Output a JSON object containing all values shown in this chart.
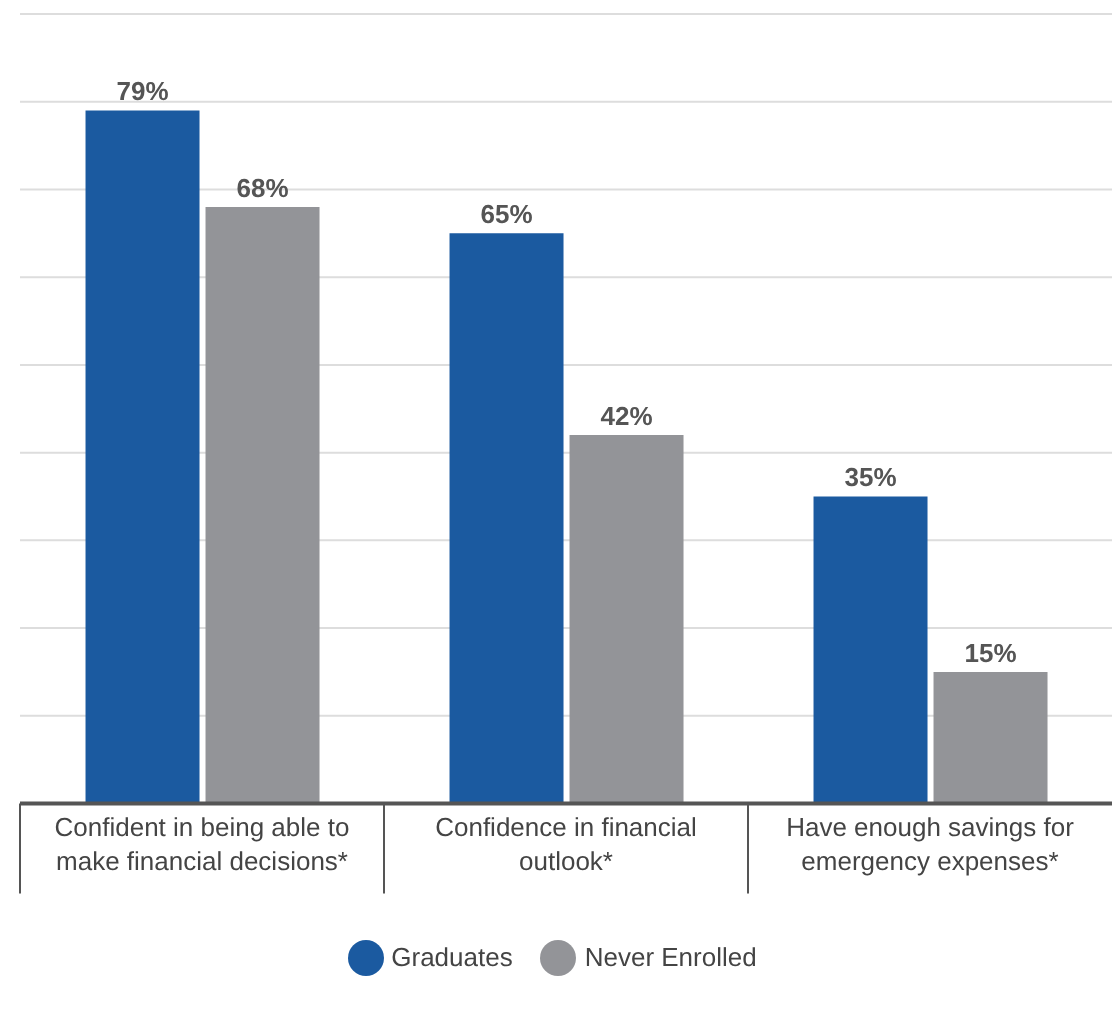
{
  "chart_data": {
    "type": "bar",
    "categories": [
      "Confident in being able to make financial decisions*",
      "Confidence in financial outlook*",
      "Have enough savings for emergency expenses*"
    ],
    "series": [
      {
        "name": "Graduates",
        "color": "#1b5aa0",
        "values": [
          79,
          65,
          35
        ],
        "value_labels": [
          "79%",
          "65%",
          "35%"
        ]
      },
      {
        "name": "Never Enrolled",
        "color": "#939498",
        "values": [
          68,
          42,
          15
        ],
        "value_labels": [
          "68%",
          "42%",
          "15%"
        ]
      }
    ],
    "ylim": [
      0,
      90
    ],
    "yticks": [
      {
        "value": 0,
        "label": null
      },
      {
        "value": 10,
        "label": null
      },
      {
        "value": 20,
        "label": null
      },
      {
        "value": 30,
        "label": null
      },
      {
        "value": 40,
        "label": null
      },
      {
        "value": 50,
        "label": null
      },
      {
        "value": 60,
        "label": null
      },
      {
        "value": 70,
        "label": null
      },
      {
        "value": 80,
        "label": null
      },
      {
        "value": 90,
        "label": null
      }
    ],
    "tick_labels": "x",
    "grid": "y",
    "legend": "bottom"
  }
}
